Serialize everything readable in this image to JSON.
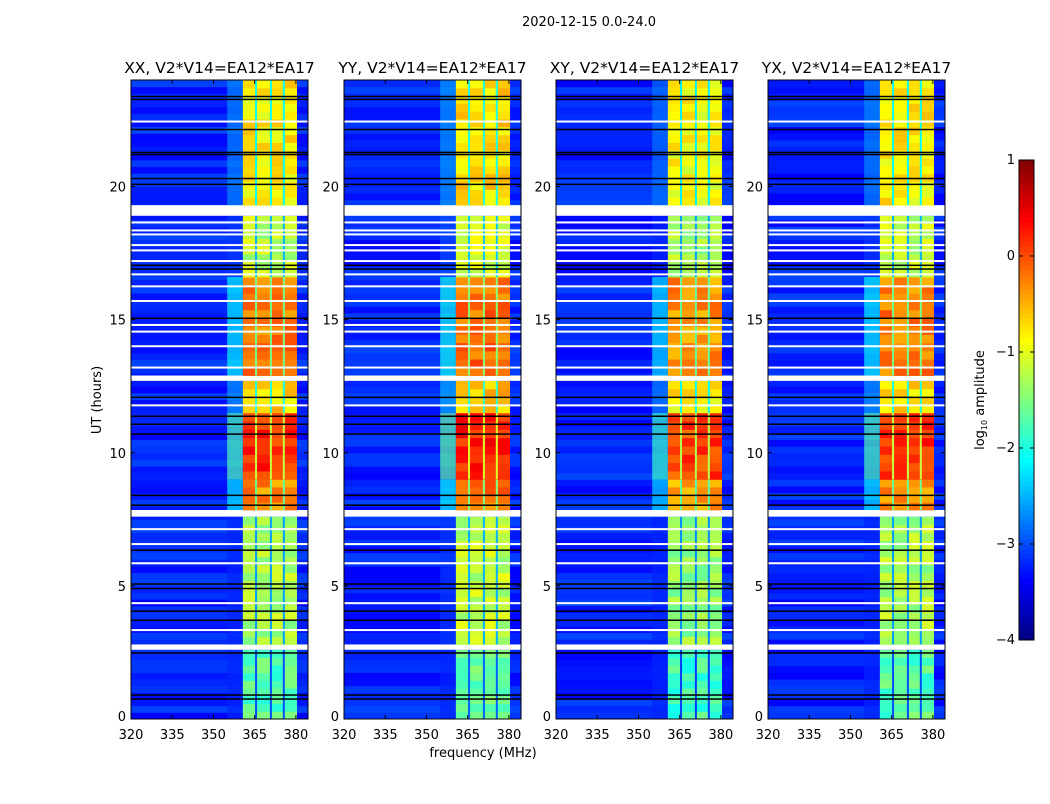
{
  "figure_title": "2020-12-15 0.0-24.0",
  "chart_data": [
    {
      "type": "heatmap",
      "title": "XX, V2*V14=EA12*EA17",
      "xlabel": "",
      "ylabel": "UT (hours)",
      "xlim": [
        320,
        384.4
      ],
      "ylim": [
        0,
        24
      ],
      "xticks": [
        320,
        335,
        350,
        365,
        380
      ],
      "yticks": [
        0,
        5,
        10,
        15,
        20
      ],
      "band_offset": 0.0
    },
    {
      "type": "heatmap",
      "title": "YY, V2*V14=EA12*EA17",
      "xlabel": "frequency (MHz)",
      "ylabel": "",
      "xlim": [
        320,
        384.4
      ],
      "ylim": [
        0,
        24
      ],
      "xticks": [
        320,
        335,
        350,
        365,
        380
      ],
      "yticks": [
        0,
        5,
        10,
        15,
        20
      ],
      "band_offset": 0.1
    },
    {
      "type": "heatmap",
      "title": "XY, V2*V14=EA12*EA17",
      "xlabel": "",
      "ylabel": "",
      "xlim": [
        320,
        384.4
      ],
      "ylim": [
        0,
        24
      ],
      "xticks": [
        320,
        335,
        350,
        365,
        380
      ],
      "yticks": [
        0,
        5,
        10,
        15,
        20
      ],
      "band_offset": -0.1
    },
    {
      "type": "heatmap",
      "title": "YX, V2*V14=EA12*EA17",
      "xlabel": "",
      "ylabel": "",
      "xlim": [
        320,
        384.4
      ],
      "ylim": [
        0,
        24
      ],
      "xticks": [
        320,
        335,
        350,
        365,
        380
      ],
      "yticks": [
        0,
        5,
        10,
        15,
        20
      ],
      "band_offset": 0.0
    }
  ],
  "shared": {
    "band_mhz": [
      360.7,
      380.4
    ],
    "shoulder_mhz": [
      355,
      360.7
    ],
    "subband_edges_mhz": [
      365.5,
      370.9,
      375.6
    ],
    "background_log_amp": -3.2,
    "time_segments": [
      {
        "start": 0.0,
        "end": 2.6,
        "band_log_amp": -1.7
      },
      {
        "start": 2.6,
        "end": 2.8,
        "flagged": true
      },
      {
        "start": 2.8,
        "end": 7.6,
        "band_log_amp": -1.3
      },
      {
        "start": 7.6,
        "end": 7.85,
        "flagged": true
      },
      {
        "start": 7.85,
        "end": 9.0,
        "band_log_amp": -0.3
      },
      {
        "start": 9.0,
        "end": 11.5,
        "band_log_amp": 0.15
      },
      {
        "start": 11.5,
        "end": 12.7,
        "band_log_amp": -0.7
      },
      {
        "start": 12.7,
        "end": 12.9,
        "flagged": true
      },
      {
        "start": 12.9,
        "end": 16.6,
        "band_log_amp": -0.25
      },
      {
        "start": 16.6,
        "end": 18.9,
        "band_log_amp": -1.2
      },
      {
        "start": 18.9,
        "end": 19.3,
        "flagged": true
      },
      {
        "start": 19.3,
        "end": 24.0,
        "band_log_amp": -0.8
      }
    ],
    "flagged_lines_hr": [
      3.34,
      4.35,
      5.85,
      6.57,
      7.13,
      11.78,
      13.2,
      14.0,
      14.55,
      14.8,
      15.7,
      16.25,
      16.7,
      17.2,
      17.6,
      17.8,
      18.2,
      18.35,
      18.65,
      22.44
    ],
    "dropout_lines_hr": [
      0.75,
      0.9,
      2.48,
      3.71,
      4.05,
      4.9,
      5.07,
      6.34,
      8.03,
      8.4,
      10.7,
      11.07,
      11.37,
      12.08,
      15.05,
      16.9,
      17.04,
      20.08,
      20.3,
      21.2,
      21.28,
      22.14,
      23.27,
      23.38
    ]
  },
  "colorbar": {
    "label_prefix": "log",
    "label_sub": "10",
    "label_suffix": " amplitude",
    "range": [
      -4,
      1
    ],
    "ticks": [
      -4,
      -3,
      -2,
      -1,
      0,
      1
    ],
    "tick_labels": [
      "−4",
      "−3",
      "−2",
      "−1",
      "0",
      "1"
    ],
    "colormap": "jet"
  }
}
